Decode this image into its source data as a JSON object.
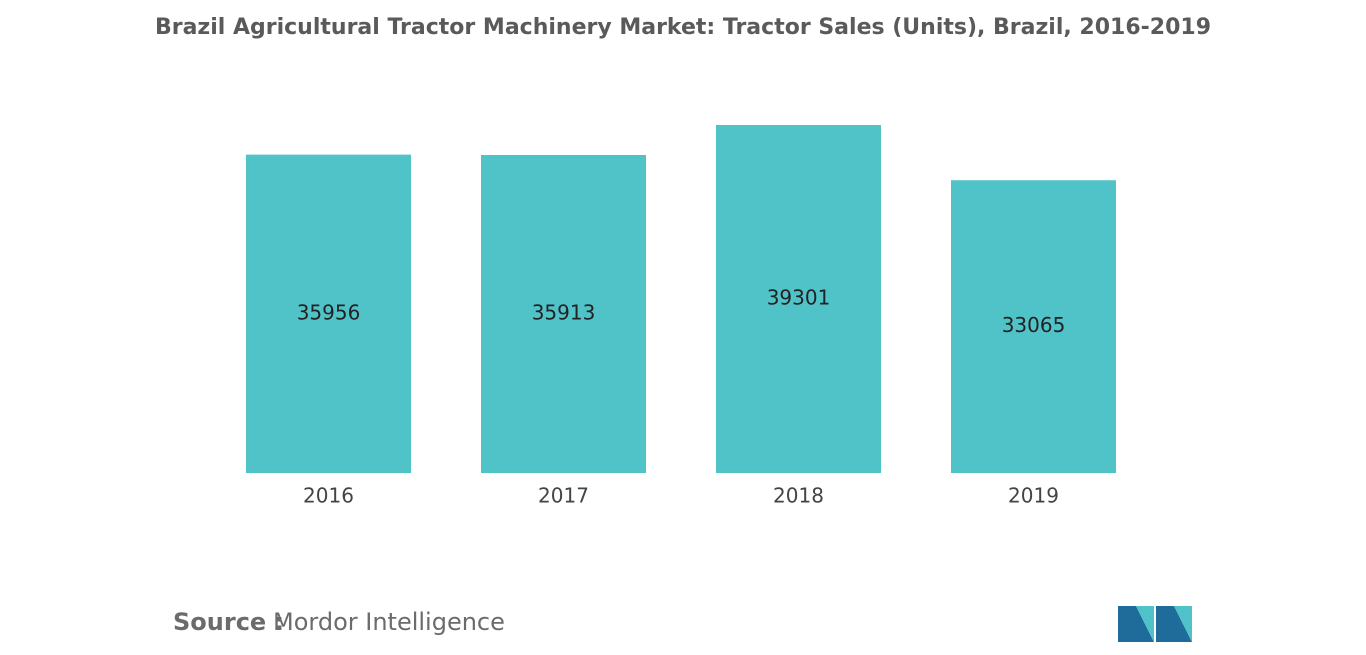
{
  "chart_data": {
    "type": "bar",
    "title": "Brazil Agricultural Tractor Machinery Market: Tractor Sales (Units), Brazil, 2016-2019",
    "categories": [
      "2016",
      "2017",
      "2018",
      "2019"
    ],
    "values": [
      35956,
      35913,
      39301,
      33065
    ],
    "color": "#50c3c9",
    "source_label": "Source :",
    "source": "Mordor Intelligence"
  }
}
